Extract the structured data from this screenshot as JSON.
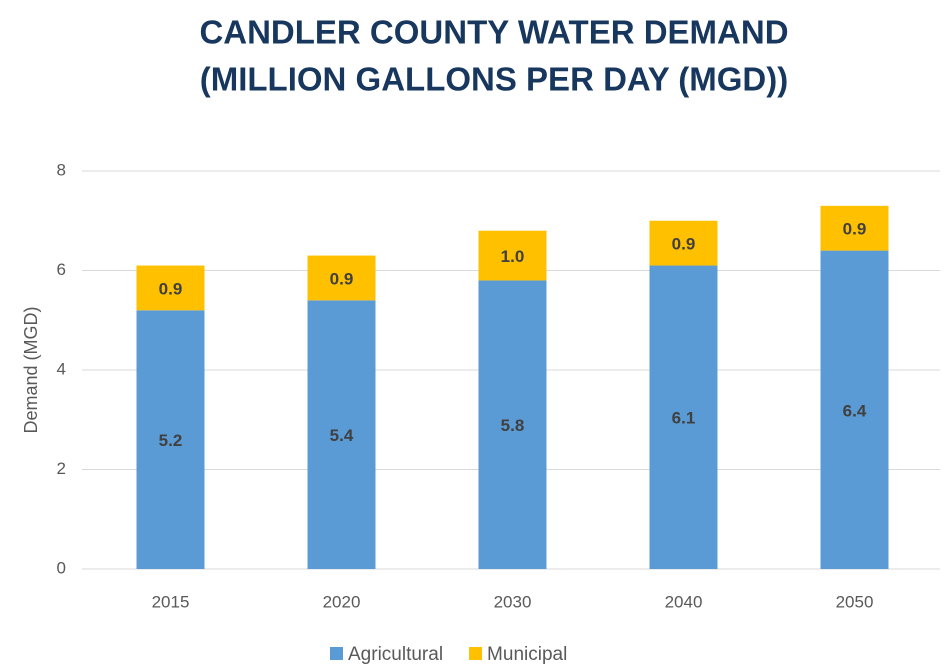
{
  "chart_data": {
    "type": "stacked_bar",
    "title": [
      "CANDLER COUNTY WATER DEMAND",
      "(MILLION GALLONS PER DAY (MGD))"
    ],
    "y_label": "Demand (MGD)",
    "categories": [
      "2015",
      "2020",
      "2030",
      "2040",
      "2050"
    ],
    "series": [
      {
        "name": "Agricultural",
        "color": "#5b9bd5",
        "values": [
          5.2,
          5.4,
          5.8,
          6.1,
          6.4
        ]
      },
      {
        "name": "Municipal",
        "color": "#ffc000",
        "values": [
          0.9,
          0.9,
          1.0,
          0.9,
          0.9
        ],
        "value_labels": [
          "0.9",
          "0.9",
          "1.0",
          "0.9",
          "0.9"
        ]
      }
    ],
    "ylim": [
      0,
      8
    ],
    "yticks": [
      0,
      2,
      4,
      6,
      8
    ],
    "grid": true,
    "legend": "bottom"
  }
}
